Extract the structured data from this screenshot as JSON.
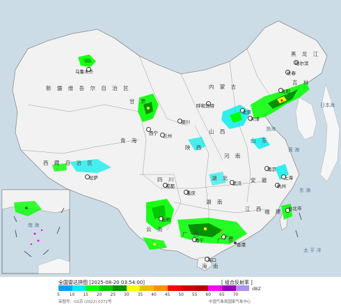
{
  "map": {
    "regions": [
      {
        "id": "xinjiang",
        "text": "新 疆 维 吾 尔 自 治 区"
      },
      {
        "id": "xizang",
        "text": "西 藏 自 治 区"
      },
      {
        "id": "qinghai",
        "text": "青 海"
      },
      {
        "id": "sichuan",
        "text": "四 川"
      },
      {
        "id": "gansu",
        "text": "甘 肃"
      },
      {
        "id": "neimenggu",
        "text": "内 蒙 古"
      },
      {
        "id": "heilongjiang",
        "text": "黑 龙 江"
      },
      {
        "id": "jilin",
        "text": "吉 林"
      },
      {
        "id": "yunnan",
        "text": "云 南"
      },
      {
        "id": "guangxi",
        "text": "广 西"
      },
      {
        "id": "guangdong",
        "text": "广 东"
      },
      {
        "id": "hunan",
        "text": "湖 南"
      },
      {
        "id": "hubei",
        "text": "湖 北"
      },
      {
        "id": "henan",
        "text": "河 南"
      },
      {
        "id": "shanxi",
        "text": "山 西"
      },
      {
        "id": "shaanxi",
        "text": "陕 西"
      },
      {
        "id": "shandong",
        "text": "山 东"
      },
      {
        "id": "jiangxi",
        "text": "江 西"
      },
      {
        "id": "fujian",
        "text": "福 建"
      },
      {
        "id": "anhui",
        "text": "安 徽"
      },
      {
        "id": "hainan",
        "text": "海 南"
      }
    ],
    "cities": [
      {
        "id": "urumqi",
        "text": "乌鲁木齐"
      },
      {
        "id": "lhasa",
        "text": "拉萨"
      },
      {
        "id": "xining",
        "text": "西宁"
      },
      {
        "id": "lanzhou",
        "text": "兰州"
      },
      {
        "id": "yinchuan",
        "text": "银川"
      },
      {
        "id": "hohhot",
        "text": "呼和浩特"
      },
      {
        "id": "beijing",
        "text": "北京"
      },
      {
        "id": "tianjin",
        "text": "天津"
      },
      {
        "id": "harbin",
        "text": "哈尔滨"
      },
      {
        "id": "changchun",
        "text": "长春"
      },
      {
        "id": "shenyang",
        "text": "沈阳"
      },
      {
        "id": "chengdu",
        "text": "成都"
      },
      {
        "id": "chongqing",
        "text": "重庆"
      },
      {
        "id": "wuhan",
        "text": "武汉"
      },
      {
        "id": "nanjing",
        "text": "南京"
      },
      {
        "id": "shanghai",
        "text": "上海"
      },
      {
        "id": "hangzhou",
        "text": "杭州"
      },
      {
        "id": "guangzhou",
        "text": "广州"
      },
      {
        "id": "kunming",
        "text": "昆明"
      },
      {
        "id": "nanning",
        "text": "南宁"
      },
      {
        "id": "haikou",
        "text": "海口"
      },
      {
        "id": "taipei",
        "text": "台北市"
      },
      {
        "id": "hongkong",
        "text": "香港"
      }
    ],
    "seas": [
      {
        "id": "bohai",
        "text": "渤海"
      },
      {
        "id": "huanghai",
        "text": "黄 海"
      },
      {
        "id": "donghai",
        "text": "东 海"
      },
      {
        "id": "taipingyang",
        "text": "太 平 洋"
      },
      {
        "id": "riben",
        "text": "日本海"
      },
      {
        "id": "nanhai",
        "text": "南 海"
      }
    ]
  },
  "legend": {
    "title": "全国雷达拼图 [2025-08-20 03:54:00]",
    "product": "[ 组合反射率 ]",
    "unit": "dBZ",
    "ticks": [
      "5",
      "10",
      "15",
      "20",
      "25",
      "30",
      "35",
      "40",
      "45",
      "50",
      "55",
      "60",
      "65",
      "70"
    ],
    "colors": [
      "#00a0f6",
      "#00ecec",
      "#01ff00",
      "#00c800",
      "#019000",
      "#ffff00",
      "#e7c000",
      "#ff9000",
      "#ff0000",
      "#d60000",
      "#c00000",
      "#ff00f0",
      "#9600b4",
      "#ad90f0"
    ],
    "approval": "审图号：GS京 (2022) 0372号",
    "credit": "中国气象局国家气象中心"
  },
  "colors": {
    "land": "#f2f2f2",
    "sea": "#cbdce6",
    "border": "#8c8c8c"
  }
}
